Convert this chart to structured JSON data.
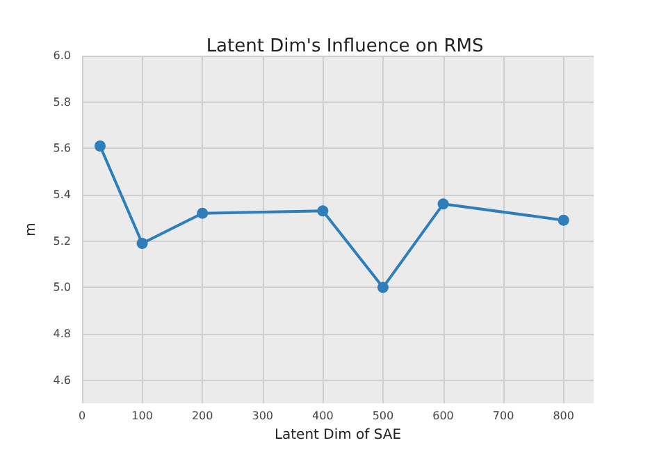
{
  "chart_data": {
    "type": "line",
    "title": "Latent Dim's Influence on RMS",
    "xlabel": "Latent Dim of SAE",
    "ylabel": "m",
    "x": [
      30,
      100,
      200,
      400,
      500,
      600,
      800
    ],
    "series": [
      {
        "color": "#2e7ebc",
        "values": [
          5.61,
          5.19,
          5.32,
          5.33,
          5.0,
          5.36,
          5.29
        ]
      }
    ],
    "xlim": [
      0,
      850
    ],
    "xticks": [
      0,
      100,
      200,
      300,
      400,
      500,
      600,
      700,
      800
    ],
    "ylim": [
      4.5,
      6.0
    ],
    "yticks": [
      4.6,
      4.8,
      {
        "value": 5.0,
        "label": "5.0"
      },
      5.2,
      5.4,
      5.6,
      5.8,
      {
        "value": 6.0,
        "label": "6.0"
      }
    ],
    "grid": true,
    "marker": "circle",
    "line_style": "solid"
  }
}
